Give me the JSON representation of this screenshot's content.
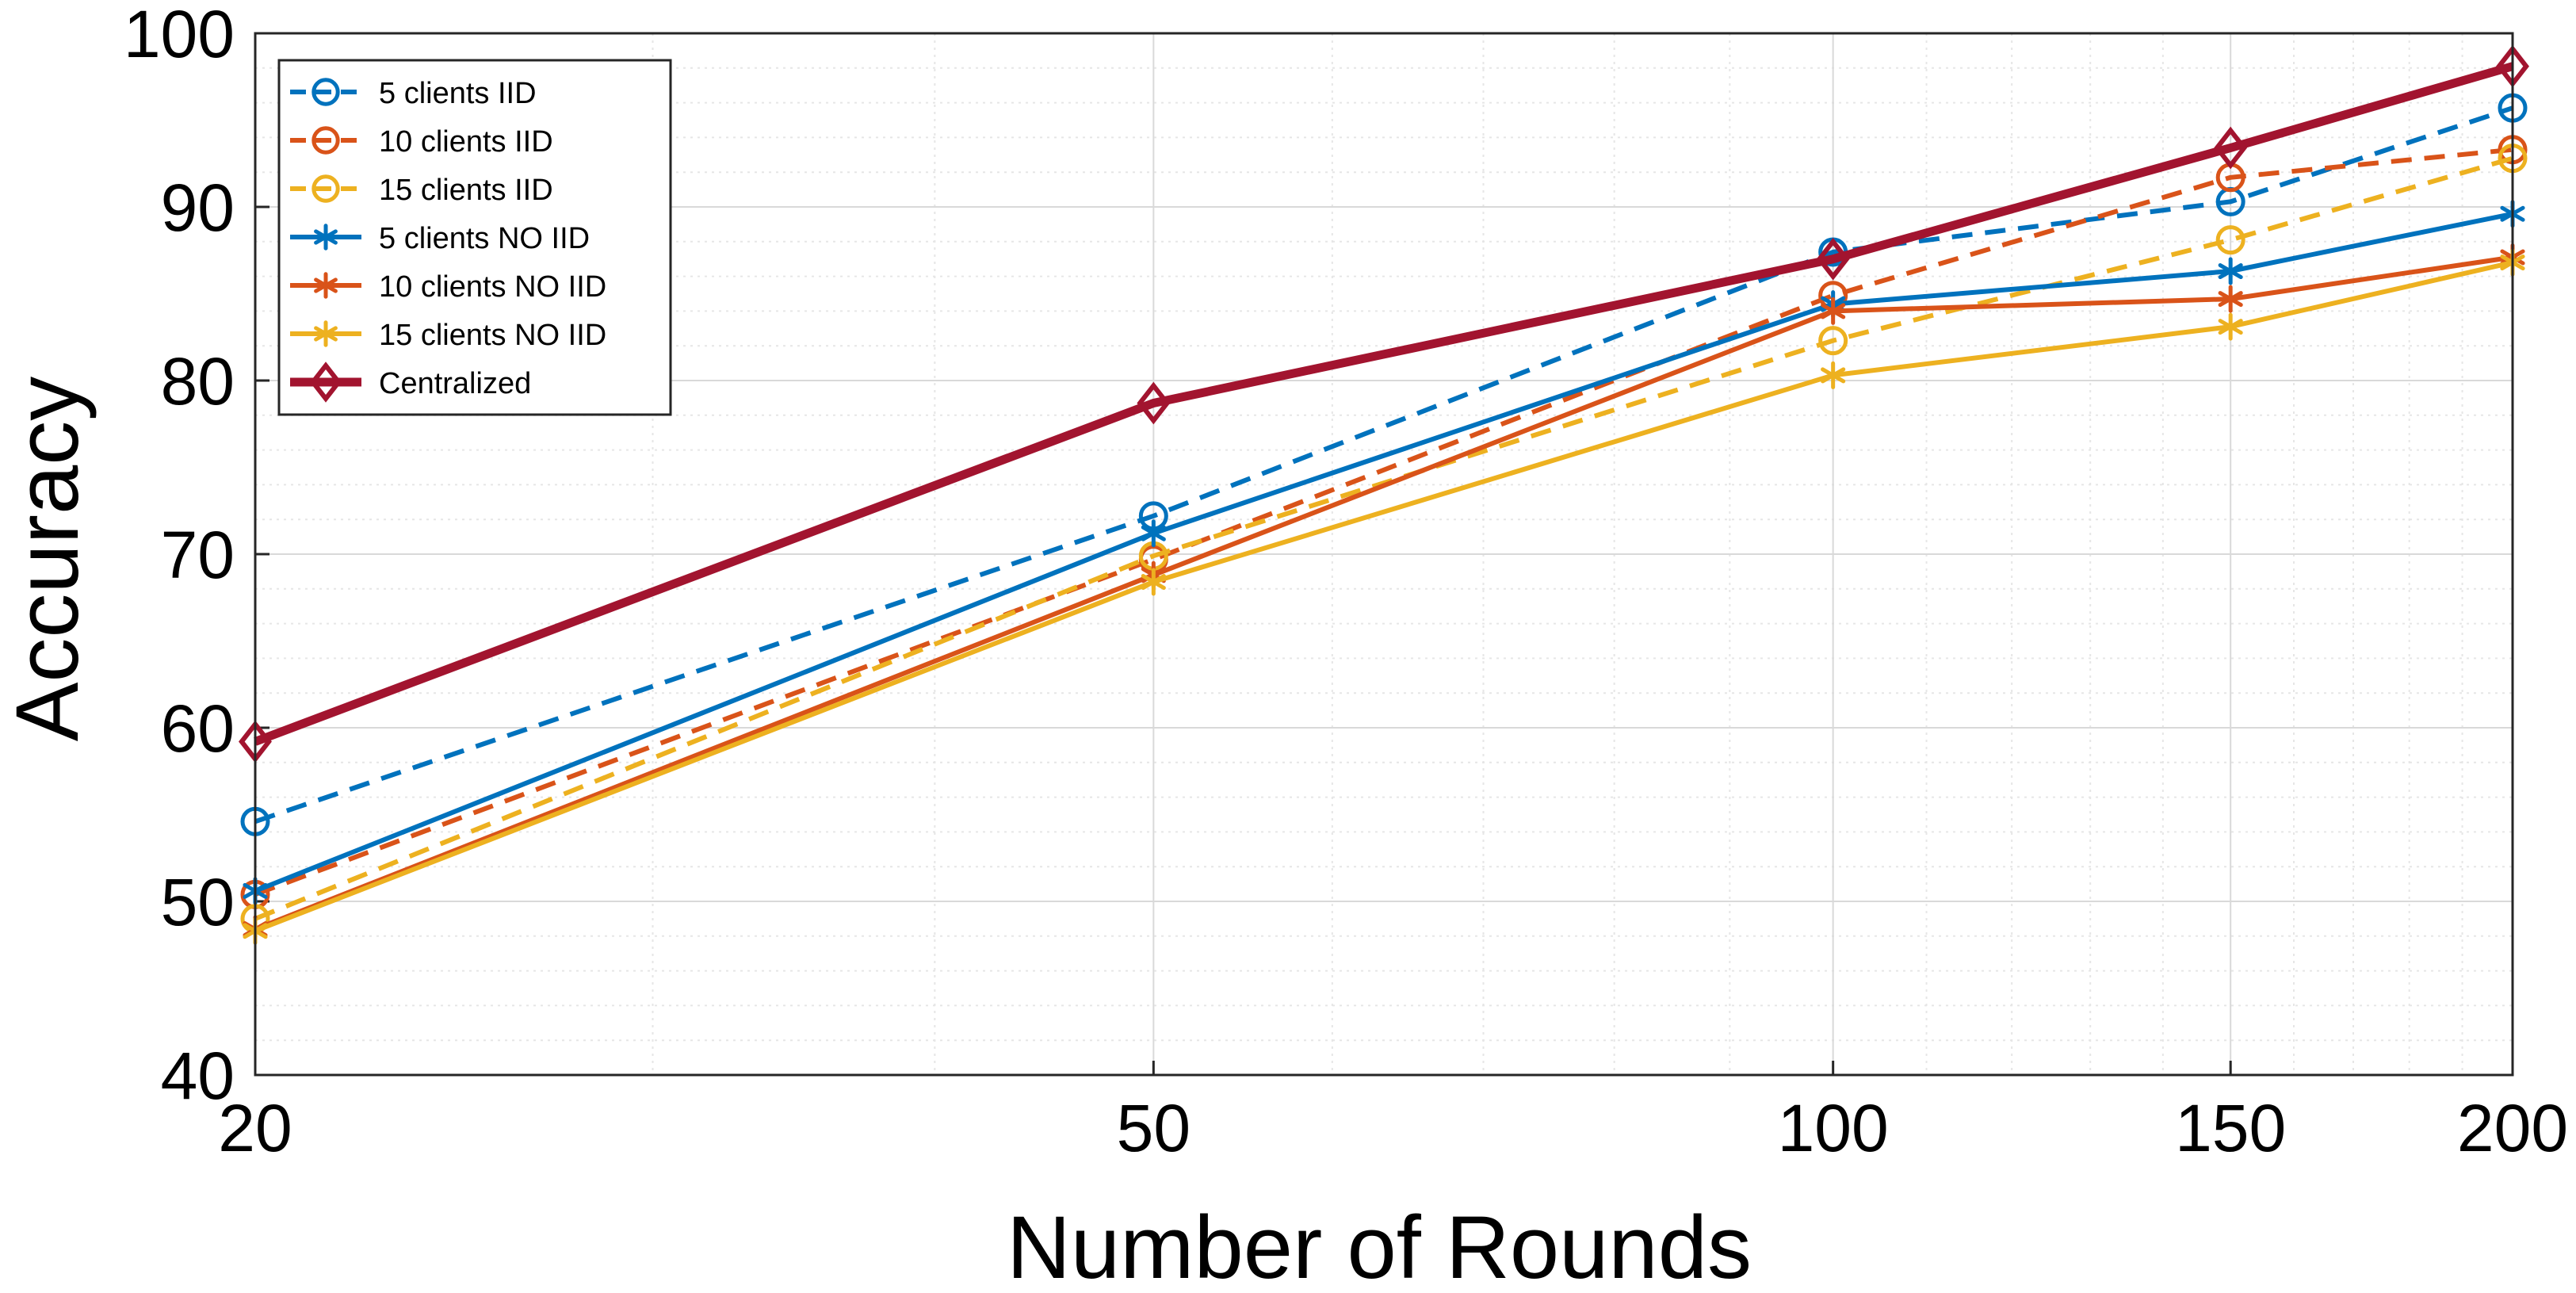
{
  "chart_data": {
    "type": "line",
    "title": "",
    "xlabel": "Number of Rounds",
    "ylabel": "Accuracy",
    "x": [
      20,
      50,
      100,
      150,
      200
    ],
    "x_tick_labels": [
      "20",
      "50",
      "100",
      "150",
      "200"
    ],
    "y_ticks": [
      40,
      50,
      60,
      70,
      80,
      90,
      100
    ],
    "y_tick_labels": [
      "40",
      "50",
      "60",
      "70",
      "80",
      "90",
      "100"
    ],
    "ylim": [
      40,
      100
    ],
    "x_scale": "log",
    "grid": true,
    "minor_grid": true,
    "legend_position": "top-left",
    "series": [
      {
        "name": "5 clients IID",
        "color": "#0072BD",
        "line_style": "dashed",
        "marker": "circle",
        "values": [
          54.6,
          72.2,
          87.4,
          90.3,
          95.7
        ]
      },
      {
        "name": "10 clients IID",
        "color": "#D95319",
        "line_style": "dashed",
        "marker": "circle",
        "values": [
          50.4,
          69.7,
          84.9,
          91.7,
          93.3
        ]
      },
      {
        "name": "15 clients IID",
        "color": "#EDB120",
        "line_style": "dashed",
        "marker": "circle",
        "values": [
          49.0,
          69.9,
          82.3,
          88.1,
          92.8
        ]
      },
      {
        "name": "5 clients NO IID",
        "color": "#0072BD",
        "line_style": "solid",
        "marker": "asterisk",
        "values": [
          50.6,
          71.2,
          84.4,
          86.3,
          89.6
        ]
      },
      {
        "name": "10 clients NO IID",
        "color": "#D95319",
        "line_style": "solid",
        "marker": "asterisk",
        "values": [
          48.4,
          68.8,
          84.0,
          84.7,
          87.1
        ]
      },
      {
        "name": "15 clients NO IID",
        "color": "#EDB120",
        "line_style": "solid",
        "marker": "asterisk",
        "values": [
          48.3,
          68.4,
          80.3,
          83.1,
          86.8
        ]
      },
      {
        "name": "Centralized",
        "color": "#A2142F",
        "line_style": "solid-thick",
        "marker": "diamond",
        "values": [
          59.2,
          78.7,
          87.0,
          93.4,
          98.1
        ]
      }
    ]
  }
}
